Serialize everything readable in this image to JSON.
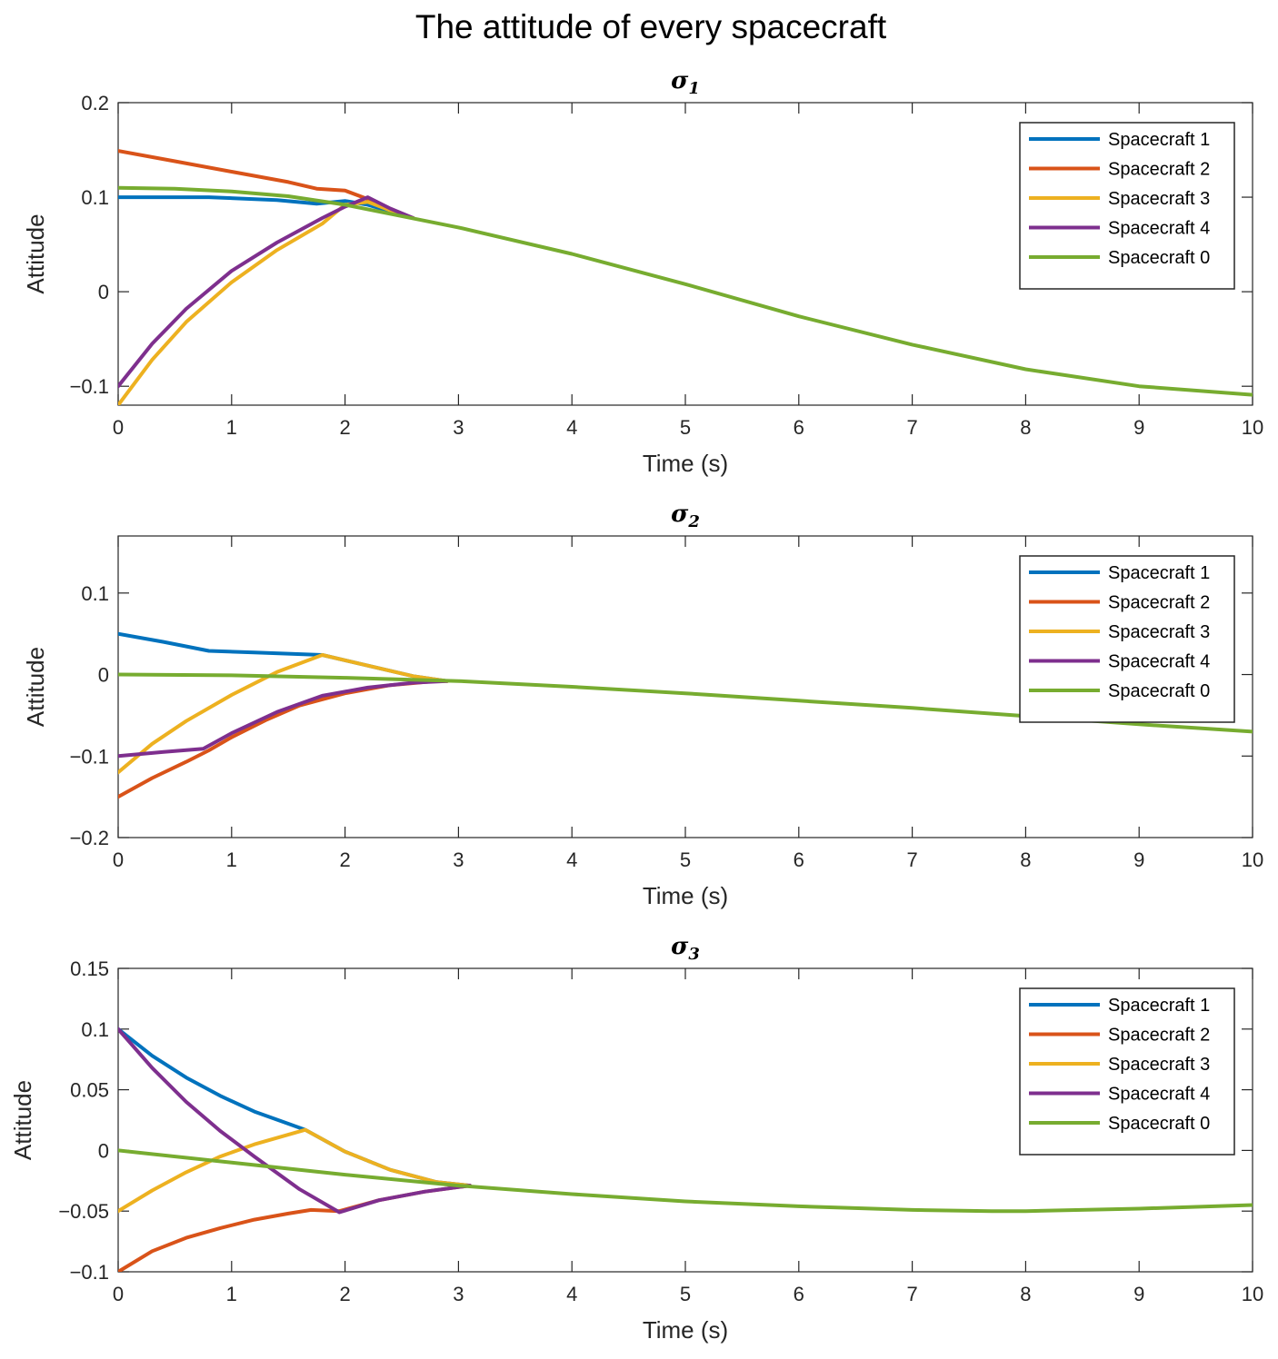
{
  "figure_title": "The attitude  of every spacecraft",
  "colors": {
    "Spacecraft 1": "#0072BD",
    "Spacecraft 2": "#D95319",
    "Spacecraft 3": "#EDB120",
    "Spacecraft 4": "#7E2F8E",
    "Spacecraft 0": "#77AC30"
  },
  "chart_data": [
    {
      "type": "line",
      "title": "σ",
      "title_subscript": "1",
      "xlabel": "Time (s)",
      "ylabel": "Attitude",
      "xlim": [
        0,
        10
      ],
      "ylim": [
        -0.12,
        0.2
      ],
      "xticks": [
        0,
        1,
        2,
        3,
        4,
        5,
        6,
        7,
        8,
        9,
        10
      ],
      "yticks": [
        -0.1,
        0,
        0.1,
        0.2
      ],
      "ytick_labels": [
        "−0.1",
        "0",
        "0.1",
        "0.2"
      ],
      "grid": false,
      "legend_position": "top-right",
      "series": [
        {
          "name": "Spacecraft 1",
          "x": [
            0,
            0.8,
            1.4,
            1.75,
            2.0,
            2.2,
            2.6
          ],
          "y": [
            0.1,
            0.1,
            0.097,
            0.093,
            0.096,
            0.092,
            0.078
          ]
        },
        {
          "name": "Spacecraft 2",
          "x": [
            0,
            0.5,
            1.0,
            1.5,
            1.75,
            2.0,
            2.2,
            2.4,
            2.6
          ],
          "y": [
            0.149,
            0.138,
            0.127,
            0.116,
            0.109,
            0.107,
            0.098,
            0.086,
            0.078
          ]
        },
        {
          "name": "Spacecraft 3",
          "x": [
            0,
            0.3,
            0.6,
            1.0,
            1.4,
            1.8,
            2.0,
            2.2,
            2.4,
            2.6
          ],
          "y": [
            -0.12,
            -0.072,
            -0.032,
            0.01,
            0.044,
            0.072,
            0.092,
            0.095,
            0.086,
            0.078
          ]
        },
        {
          "name": "Spacecraft 4",
          "x": [
            0,
            0.3,
            0.6,
            1.0,
            1.4,
            1.8,
            2.0,
            2.2,
            2.4,
            2.6
          ],
          "y": [
            -0.1,
            -0.055,
            -0.018,
            0.022,
            0.052,
            0.078,
            0.09,
            0.1,
            0.088,
            0.078
          ]
        },
        {
          "name": "Spacecraft 0",
          "x": [
            0,
            0.5,
            1.0,
            1.5,
            2.0,
            2.5,
            3.0,
            4.0,
            5.0,
            6.0,
            7.0,
            8.0,
            9.0,
            10.0
          ],
          "y": [
            0.11,
            0.109,
            0.106,
            0.101,
            0.092,
            0.08,
            0.068,
            0.04,
            0.008,
            -0.026,
            -0.056,
            -0.082,
            -0.1,
            -0.109
          ]
        }
      ]
    },
    {
      "type": "line",
      "title": "σ",
      "title_subscript": "2",
      "xlabel": "Time (s)",
      "ylabel": "Attitude",
      "xlim": [
        0,
        10
      ],
      "ylim": [
        -0.2,
        0.17
      ],
      "xticks": [
        0,
        1,
        2,
        3,
        4,
        5,
        6,
        7,
        8,
        9,
        10
      ],
      "yticks": [
        -0.2,
        -0.1,
        0,
        0.1
      ],
      "ytick_labels": [
        "−0.2",
        "−0.1",
        "0",
        "0.1"
      ],
      "grid": false,
      "legend_position": "top-right",
      "series": [
        {
          "name": "Spacecraft 1",
          "x": [
            0,
            0.4,
            0.8,
            1.2,
            1.8,
            2.2,
            2.6,
            2.9
          ],
          "y": [
            0.05,
            0.04,
            0.029,
            0.027,
            0.024,
            0.011,
            -0.002,
            -0.008
          ]
        },
        {
          "name": "Spacecraft 2",
          "x": [
            0,
            0.3,
            0.6,
            0.8,
            1.0,
            1.3,
            1.6,
            2.0,
            2.4,
            2.8,
            2.9
          ],
          "y": [
            -0.15,
            -0.127,
            -0.107,
            -0.093,
            -0.077,
            -0.056,
            -0.038,
            -0.023,
            -0.013,
            -0.008,
            -0.008
          ]
        },
        {
          "name": "Spacecraft 3",
          "x": [
            0,
            0.3,
            0.6,
            1.0,
            1.4,
            1.8,
            2.2,
            2.6,
            2.9
          ],
          "y": [
            -0.12,
            -0.085,
            -0.057,
            -0.025,
            0.003,
            0.024,
            0.011,
            -0.002,
            -0.008
          ]
        },
        {
          "name": "Spacecraft 4",
          "x": [
            0,
            0.4,
            0.75,
            1.0,
            1.4,
            1.8,
            2.2,
            2.6,
            2.9
          ],
          "y": [
            -0.1,
            -0.095,
            -0.091,
            -0.072,
            -0.046,
            -0.026,
            -0.016,
            -0.01,
            -0.008
          ]
        },
        {
          "name": "Spacecraft 0",
          "x": [
            0,
            1.0,
            2.0,
            3.0,
            4.0,
            5.0,
            6.0,
            7.0,
            8.0,
            9.0,
            10.0
          ],
          "y": [
            0,
            -0.001,
            -0.004,
            -0.008,
            -0.015,
            -0.023,
            -0.032,
            -0.041,
            -0.051,
            -0.061,
            -0.07
          ]
        }
      ]
    },
    {
      "type": "line",
      "title": "σ",
      "title_subscript": "3",
      "xlabel": "Time (s)",
      "ylabel": "Attitude",
      "xlim": [
        0,
        10
      ],
      "ylim": [
        -0.1,
        0.15
      ],
      "xticks": [
        0,
        1,
        2,
        3,
        4,
        5,
        6,
        7,
        8,
        9,
        10
      ],
      "yticks": [
        -0.1,
        -0.05,
        0,
        0.05,
        0.1,
        0.15
      ],
      "ytick_labels": [
        "−0.1",
        "−0.05",
        "0",
        "0.05",
        "0.1",
        "0.15"
      ],
      "grid": false,
      "legend_position": "top-right",
      "series": [
        {
          "name": "Spacecraft 1",
          "x": [
            0,
            0.3,
            0.6,
            0.9,
            1.2,
            1.5,
            1.65,
            2.0,
            2.4,
            2.8,
            3.1
          ],
          "y": [
            0.1,
            0.078,
            0.06,
            0.045,
            0.032,
            0.022,
            0.017,
            -0.001,
            -0.016,
            -0.026,
            -0.029
          ]
        },
        {
          "name": "Spacecraft 2",
          "x": [
            0,
            0.3,
            0.6,
            0.9,
            1.2,
            1.5,
            1.7,
            1.95,
            2.3,
            2.7,
            3.1
          ],
          "y": [
            -0.1,
            -0.083,
            -0.072,
            -0.064,
            -0.057,
            -0.052,
            -0.049,
            -0.05,
            -0.041,
            -0.034,
            -0.029
          ]
        },
        {
          "name": "Spacecraft 3",
          "x": [
            0,
            0.3,
            0.6,
            0.9,
            1.2,
            1.65,
            2.0,
            2.4,
            2.8,
            3.1
          ],
          "y": [
            -0.05,
            -0.033,
            -0.018,
            -0.005,
            0.005,
            0.017,
            -0.001,
            -0.016,
            -0.026,
            -0.029
          ]
        },
        {
          "name": "Spacecraft 4",
          "x": [
            0,
            0.3,
            0.6,
            0.9,
            1.2,
            1.6,
            1.95,
            2.3,
            2.7,
            3.1
          ],
          "y": [
            0.1,
            0.068,
            0.04,
            0.016,
            -0.005,
            -0.032,
            -0.051,
            -0.041,
            -0.034,
            -0.029
          ]
        },
        {
          "name": "Spacecraft 0",
          "x": [
            0,
            1.0,
            2.0,
            3.0,
            4.0,
            5.0,
            6.0,
            7.0,
            7.7,
            8.0,
            9.0,
            10.0
          ],
          "y": [
            0,
            -0.01,
            -0.02,
            -0.029,
            -0.036,
            -0.042,
            -0.046,
            -0.049,
            -0.05,
            -0.05,
            -0.048,
            -0.045
          ]
        }
      ]
    }
  ]
}
